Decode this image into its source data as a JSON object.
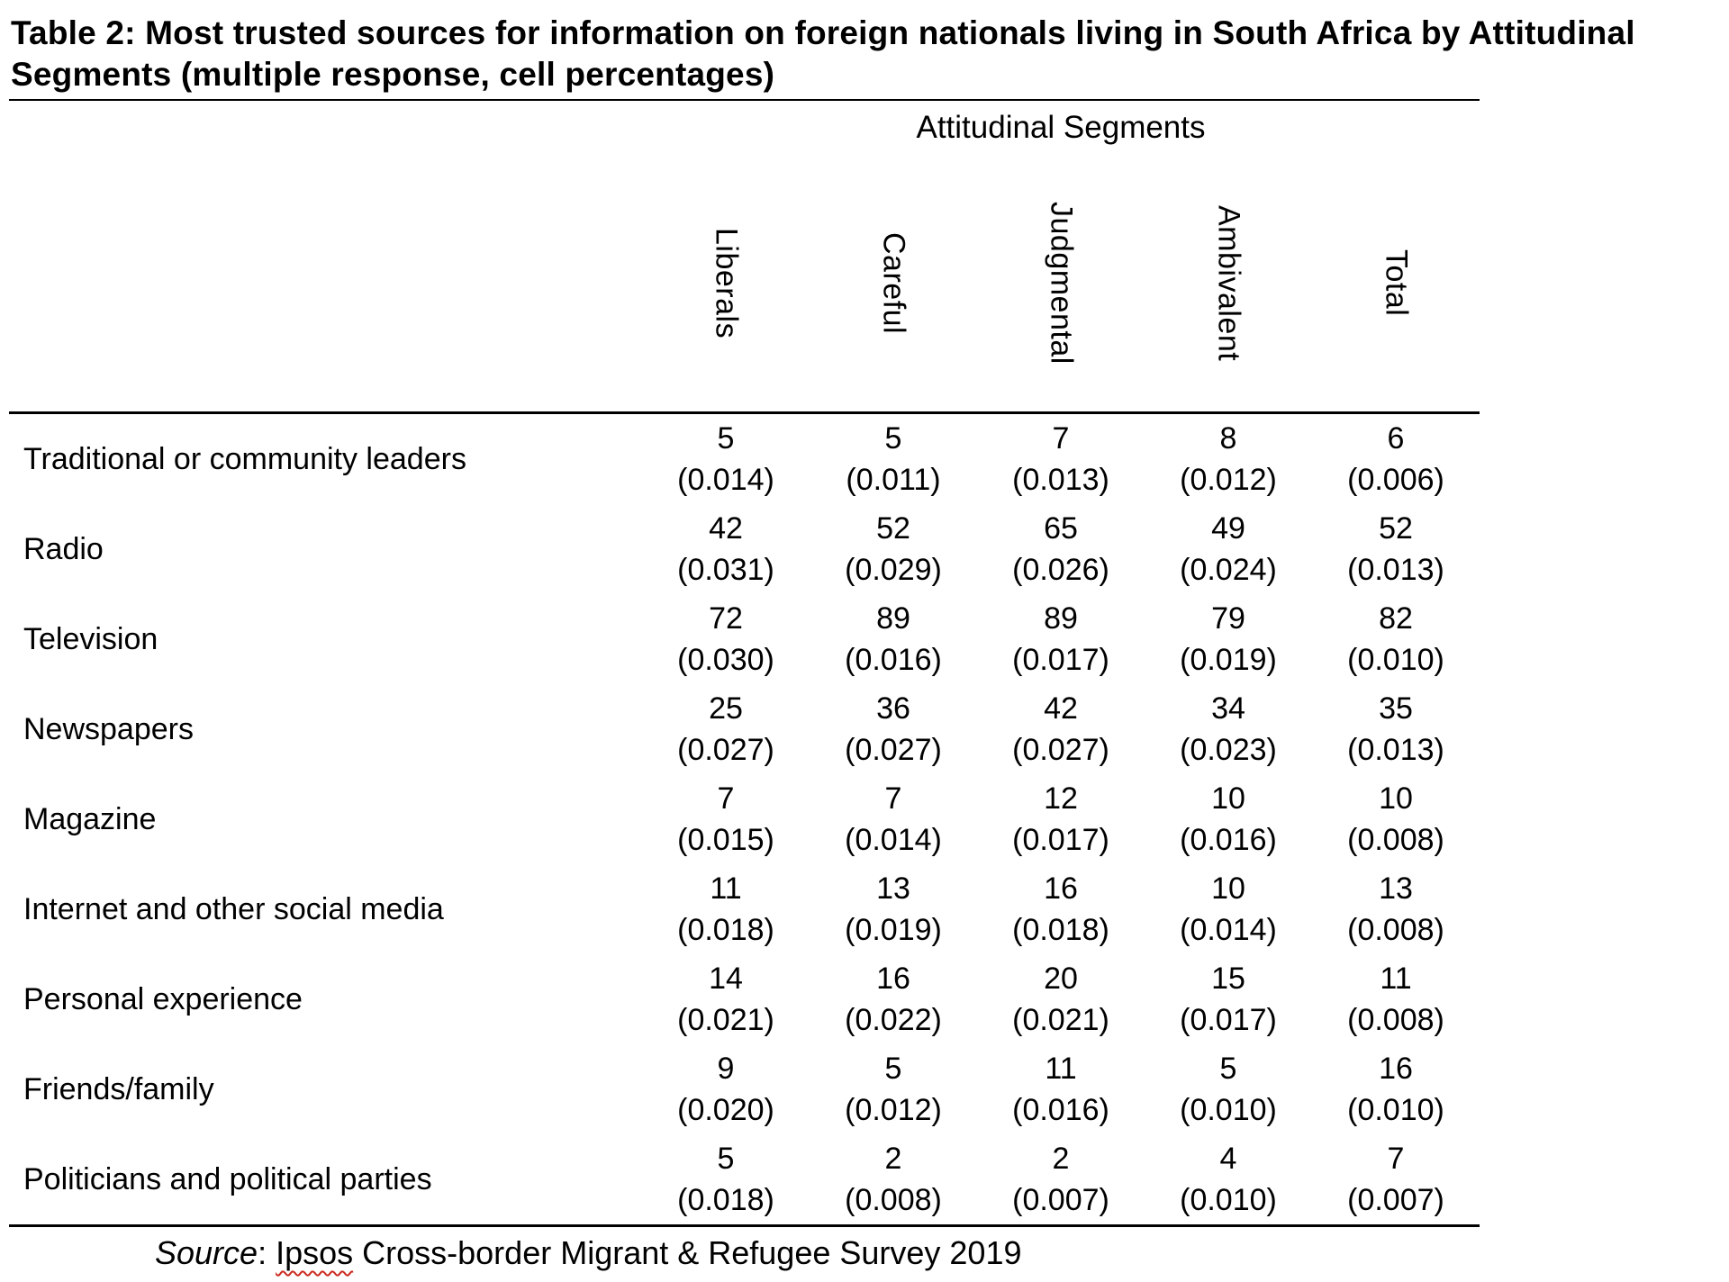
{
  "page": {
    "background": "#ffffff",
    "text_color": "#000000",
    "spellcheck_underline_color": "#cc2a1e"
  },
  "title": "Table 2: Most trusted sources for information on foreign nationals living in South Africa by Attitudinal Segments (multiple response, cell percentages)",
  "table": {
    "group_header": "Attitudinal Segments",
    "columns": [
      "Liberals",
      "Careful",
      "Judgmental",
      "Ambivalent",
      "Total"
    ],
    "rows": [
      {
        "label": "Traditional or community leaders",
        "cells": [
          {
            "value": "5",
            "se": "(0.014)"
          },
          {
            "value": "5",
            "se": "(0.011)"
          },
          {
            "value": "7",
            "se": "(0.013)"
          },
          {
            "value": "8",
            "se": "(0.012)"
          },
          {
            "value": "6",
            "se": "(0.006)"
          }
        ]
      },
      {
        "label": "Radio",
        "cells": [
          {
            "value": "42",
            "se": "(0.031)"
          },
          {
            "value": "52",
            "se": "(0.029)"
          },
          {
            "value": "65",
            "se": "(0.026)"
          },
          {
            "value": "49",
            "se": "(0.024)"
          },
          {
            "value": "52",
            "se": "(0.013)"
          }
        ]
      },
      {
        "label": "Television",
        "cells": [
          {
            "value": "72",
            "se": "(0.030)"
          },
          {
            "value": "89",
            "se": "(0.016)"
          },
          {
            "value": "89",
            "se": "(0.017)"
          },
          {
            "value": "79",
            "se": "(0.019)"
          },
          {
            "value": "82",
            "se": "(0.010)"
          }
        ]
      },
      {
        "label": "Newspapers",
        "cells": [
          {
            "value": "25",
            "se": "(0.027)"
          },
          {
            "value": "36",
            "se": "(0.027)"
          },
          {
            "value": "42",
            "se": "(0.027)"
          },
          {
            "value": "34",
            "se": "(0.023)"
          },
          {
            "value": "35",
            "se": "(0.013)"
          }
        ]
      },
      {
        "label": "Magazine",
        "cells": [
          {
            "value": "7",
            "se": "(0.015)"
          },
          {
            "value": "7",
            "se": "(0.014)"
          },
          {
            "value": "12",
            "se": "(0.017)"
          },
          {
            "value": "10",
            "se": "(0.016)"
          },
          {
            "value": "10",
            "se": "(0.008)"
          }
        ]
      },
      {
        "label": "Internet and other social media",
        "cells": [
          {
            "value": "11",
            "se": "(0.018)"
          },
          {
            "value": "13",
            "se": "(0.019)"
          },
          {
            "value": "16",
            "se": "(0.018)"
          },
          {
            "value": "10",
            "se": "(0.014)"
          },
          {
            "value": "13",
            "se": "(0.008)"
          }
        ]
      },
      {
        "label": "Personal experience",
        "cells": [
          {
            "value": "14",
            "se": "(0.021)"
          },
          {
            "value": "16",
            "se": "(0.022)"
          },
          {
            "value": "20",
            "se": "(0.021)"
          },
          {
            "value": "15",
            "se": "(0.017)"
          },
          {
            "value": "11",
            "se": "(0.008)"
          }
        ]
      },
      {
        "label": "Friends/family",
        "cells": [
          {
            "value": "9",
            "se": "(0.020)"
          },
          {
            "value": "5",
            "se": "(0.012)"
          },
          {
            "value": "11",
            "se": "(0.016)"
          },
          {
            "value": "5",
            "se": "(0.010)"
          },
          {
            "value": "16",
            "se": "(0.010)"
          }
        ]
      },
      {
        "label": "Politicians and political parties",
        "cells": [
          {
            "value": "5",
            "se": "(0.018)"
          },
          {
            "value": "2",
            "se": "(0.008)"
          },
          {
            "value": "2",
            "se": "(0.007)"
          },
          {
            "value": "4",
            "se": "(0.010)"
          },
          {
            "value": "7",
            "se": "(0.007)"
          }
        ]
      }
    ]
  },
  "source": {
    "label": "Source",
    "separator": ": ",
    "misspelled_word": "Ipsos",
    "rest": " Cross-border Migrant & Refugee Survey 2019"
  }
}
